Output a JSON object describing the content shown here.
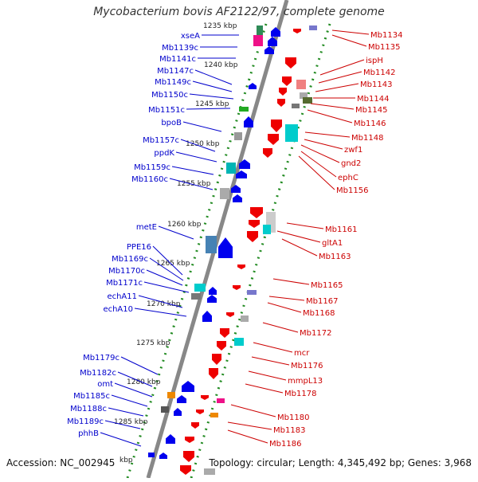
{
  "title": "Mycobacterium bovis AF2122/97, complete genome",
  "footer": {
    "accession": "Accession: NC_002945",
    "stats": "Topology: circular; Length: 4,345,492 bp; Genes: 3,968"
  },
  "colors": {
    "left_label": "#0000cc",
    "right_label": "#cc0000",
    "backbone": "#888888",
    "tick_dots": "#228b22"
  },
  "ruler": [
    "1235 kbp",
    "1240 kbp",
    "1245 kbp",
    "1250 kbp",
    "1255 kbp",
    "1260 kbp",
    "1265 kbp",
    "1270 kbp",
    "1275 kbp",
    "1280 kbp",
    "1285 kbp",
    "kbp"
  ],
  "left_labels": [
    "xseA",
    "Mb1139c",
    "Mb1141c",
    "Mb1147c",
    "Mb1149c",
    "Mb1150c",
    "Mb1151c",
    "bpoB",
    "Mb1157c",
    "ppdK",
    "Mb1159c",
    "Mb1160c",
    "metE",
    "PPE16",
    "Mb1169c",
    "Mb1170c",
    "Mb1171c",
    "echA11",
    "echA10",
    "Mb1179c",
    "Mb1182c",
    "omt",
    "Mb1185c",
    "Mb1188c",
    "Mb1189c",
    "phhB"
  ],
  "right_labels": [
    "Mb1134",
    "Mb1135",
    "ispH",
    "Mb1142",
    "Mb1143",
    "Mb1144",
    "Mb1145",
    "Mb1146",
    "Mb1148",
    "zwf1",
    "gnd2",
    "ephC",
    "Mb1156",
    "Mb1161",
    "gltA1",
    "Mb1163",
    "Mb1165",
    "Mb1167",
    "Mb1168",
    "Mb1172",
    "mcr",
    "Mb1176",
    "mmpL13",
    "Mb1178",
    "Mb1180",
    "Mb1183",
    "Mb1186"
  ]
}
